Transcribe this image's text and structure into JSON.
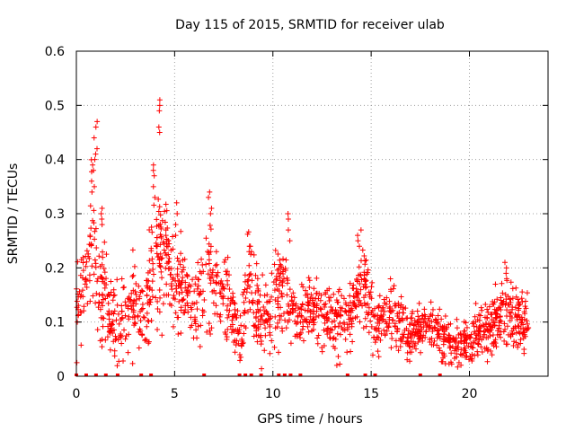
{
  "chart_data": {
    "type": "scatter",
    "title": "Day 115 of 2015, SRMTID for receiver ulab",
    "xlabel": "GPS time / hours",
    "ylabel": "SRMTID / TECUs",
    "xlim": [
      0,
      24
    ],
    "ylim": [
      0,
      0.6
    ],
    "x_ticks": [
      0,
      5,
      10,
      15,
      20
    ],
    "x_tick_labels": [
      "0",
      "5",
      "10",
      "15",
      "20"
    ],
    "y_ticks": [
      0,
      0.1,
      0.2,
      0.3,
      0.4,
      0.5,
      0.6
    ],
    "y_tick_labels": [
      "0",
      "0.1",
      "0.2",
      "0.3",
      "0.4",
      "0.5",
      "0.6"
    ],
    "grid": true,
    "marker": "plus",
    "marker_color": "#ff0000",
    "data_extent_hours": [
      0,
      23.0
    ],
    "envelope": [
      [
        0.0,
        0.13,
        0.05
      ],
      [
        0.5,
        0.17,
        0.06
      ],
      [
        0.8,
        0.28,
        0.1
      ],
      [
        1.0,
        0.2,
        0.08
      ],
      [
        1.4,
        0.15,
        0.07
      ],
      [
        1.8,
        0.11,
        0.05
      ],
      [
        2.2,
        0.08,
        0.05
      ],
      [
        2.6,
        0.12,
        0.05
      ],
      [
        3.0,
        0.14,
        0.06
      ],
      [
        3.5,
        0.11,
        0.05
      ],
      [
        3.9,
        0.22,
        0.08
      ],
      [
        4.3,
        0.22,
        0.08
      ],
      [
        4.8,
        0.19,
        0.06
      ],
      [
        5.5,
        0.16,
        0.05
      ],
      [
        6.0,
        0.13,
        0.05
      ],
      [
        6.6,
        0.19,
        0.07
      ],
      [
        7.2,
        0.17,
        0.05
      ],
      [
        7.8,
        0.13,
        0.05
      ],
      [
        8.3,
        0.05,
        0.04
      ],
      [
        8.8,
        0.17,
        0.06
      ],
      [
        9.4,
        0.1,
        0.05
      ],
      [
        10.0,
        0.12,
        0.05
      ],
      [
        10.5,
        0.17,
        0.06
      ],
      [
        11.0,
        0.1,
        0.04
      ],
      [
        11.8,
        0.13,
        0.04
      ],
      [
        12.5,
        0.11,
        0.04
      ],
      [
        13.3,
        0.1,
        0.04
      ],
      [
        14.0,
        0.12,
        0.04
      ],
      [
        14.6,
        0.17,
        0.05
      ],
      [
        15.2,
        0.1,
        0.04
      ],
      [
        16.0,
        0.11,
        0.04
      ],
      [
        17.0,
        0.08,
        0.03
      ],
      [
        18.0,
        0.09,
        0.03
      ],
      [
        18.6,
        0.07,
        0.03
      ],
      [
        19.5,
        0.06,
        0.025
      ],
      [
        20.2,
        0.07,
        0.03
      ],
      [
        21.0,
        0.09,
        0.035
      ],
      [
        21.8,
        0.12,
        0.04
      ],
      [
        22.5,
        0.1,
        0.035
      ],
      [
        23.0,
        0.1,
        0.035
      ]
    ],
    "spikes": [
      {
        "x": 0.85,
        "values": [
          0.34,
          0.35,
          0.36,
          0.38,
          0.39,
          0.4
        ]
      },
      {
        "x": 1.0,
        "values": [
          0.41,
          0.42,
          0.44,
          0.46,
          0.47
        ]
      },
      {
        "x": 1.35,
        "values": [
          0.28,
          0.29,
          0.3,
          0.31
        ]
      },
      {
        "x": 4.0,
        "values": [
          0.33,
          0.35,
          0.37,
          0.38,
          0.39
        ]
      },
      {
        "x": 4.2,
        "values": [
          0.45,
          0.46,
          0.49,
          0.5,
          0.51
        ]
      },
      {
        "x": 4.6,
        "values": [
          0.24,
          0.25,
          0.26,
          0.27
        ]
      },
      {
        "x": 5.1,
        "values": [
          0.26,
          0.28,
          0.3,
          0.32
        ]
      },
      {
        "x": 6.8,
        "values": [
          0.3,
          0.31,
          0.33,
          0.34
        ]
      },
      {
        "x": 8.8,
        "values": [
          0.23,
          0.24,
          0.24
        ]
      },
      {
        "x": 10.8,
        "values": [
          0.25,
          0.27,
          0.29,
          0.3
        ]
      },
      {
        "x": 14.4,
        "values": [
          0.24,
          0.25,
          0.26,
          0.27
        ]
      },
      {
        "x": 21.8,
        "values": [
          0.18,
          0.19,
          0.2,
          0.21
        ]
      }
    ],
    "zeros": [
      0,
      0.5,
      1.0,
      1.5,
      2.1,
      3.3,
      3.8,
      6.5,
      8.3,
      8.6,
      8.9,
      9.4,
      10.3,
      10.6,
      10.9,
      11.4,
      13.8,
      14.7,
      15.2,
      17.5,
      18.5
    ]
  }
}
